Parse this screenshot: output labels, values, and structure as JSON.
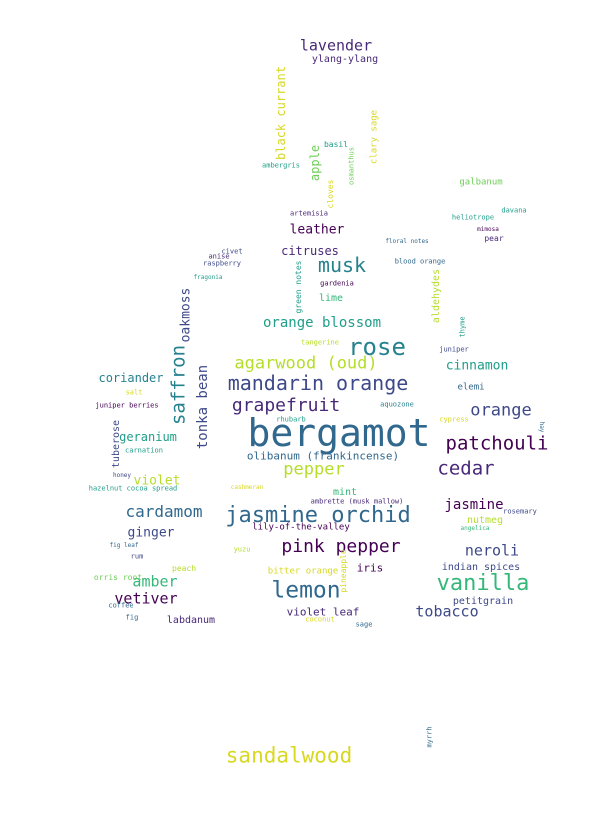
{
  "colors": {
    "background": "#ffffff",
    "palette": [
      "#440154",
      "#482878",
      "#3e4989",
      "#31688e",
      "#26828e",
      "#1f9e89",
      "#35b779",
      "#6ece58",
      "#b5de2b",
      "#d8d822"
    ]
  },
  "words": {
    "bergamot": "bergamot",
    "mandarin_orange": "mandarin orange",
    "rose": "rose",
    "jasmine_orchid": "jasmine orchid",
    "lemon": "lemon",
    "vanilla": "vanilla",
    "sandalwood": "sandalwood",
    "musk": "musk",
    "patchouli": "patchouli",
    "cedar": "cedar",
    "orange": "orange",
    "pink_pepper": "pink pepper",
    "saffron": "saffron",
    "agarwood_oud": "agarwood (oud)",
    "grapefruit": "grapefruit",
    "pepper": "pepper",
    "cardamom": "cardamom",
    "lavender": "lavender",
    "orange_blossom": "orange blossom",
    "tonka_bean": "tonka bean",
    "neroli": "neroli",
    "amber": "amber",
    "vetiver": "vetiver",
    "jasmine": "jasmine",
    "tobacco": "tobacco",
    "leather": "leather",
    "cinnamon": "cinnamon",
    "ginger": "ginger",
    "oakmoss": "oakmoss",
    "violet": "violet",
    "olibanum": "olibanum (frankincense)",
    "citruses": "citruses",
    "coriander": "coriander",
    "geranium": "geranium",
    "apple": "apple",
    "black_currant": "black currant",
    "ylang_ylang": "ylang-ylang",
    "iris": "iris",
    "violet_leaf": "violet leaf",
    "indian_spices": "indian spices",
    "nutmeg": "nutmeg",
    "labdanum": "labdanum",
    "petitgrain": "petitgrain",
    "lime": "lime",
    "mint": "mint",
    "aldehydes": "aldehydes",
    "tuberose": "tuberose",
    "bitter_orange": "bitter orange",
    "peach": "peach",
    "elemi": "elemi",
    "lily_of_the_valley": "lily-of-the-valley",
    "clary_sage": "clary sage",
    "galbanum": "galbanum",
    "basil": "basil",
    "cloves": "cloves",
    "green_notes": "green notes",
    "pineapple": "pineapple",
    "orris_root": "orris root",
    "ambergris": "ambergris",
    "osmanthus": "osmanthus",
    "artemisia": "artemisia",
    "heliotrope": "heliotrope",
    "davana": "davana",
    "mimosa": "mimosa",
    "pear": "pear",
    "floral_notes": "floral notes",
    "blood_orange": "blood orange",
    "civet": "civet",
    "anise": "anise",
    "raspberry": "raspberry",
    "fragonia": "fragonia",
    "gardenia": "gardenia",
    "thyme": "thyme",
    "juniper": "juniper",
    "tangerine": "tangerine",
    "juniper_berries": "juniper berries",
    "aquozone": "aquozone",
    "rhubarb": "rhubarb",
    "cypress": "cypress",
    "salt": "salt",
    "carnation": "carnation",
    "hay": "hay",
    "honey": "honey",
    "hazelnut_cocoa_spread": "hazelnut cocoa spread",
    "cashmeran": "cashmeran",
    "ambrette": "ambrette (musk mallow)",
    "angelica": "angelica",
    "rosemary": "rosemary",
    "fig_leaf": "fig leaf",
    "yuzu": "yuzu",
    "rum": "rum",
    "coffee": "coffee",
    "fig": "fig",
    "coconut": "coconut",
    "sage": "sage",
    "myrrh": "myrrh"
  }
}
